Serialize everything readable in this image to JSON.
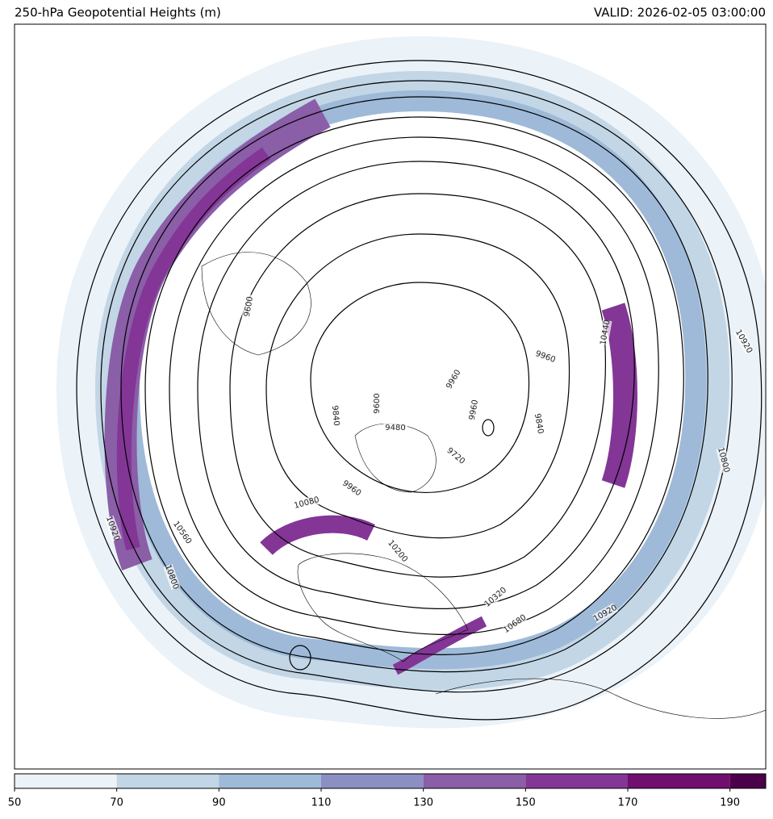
{
  "header": {
    "title": "250-hPa Geopotential Heights (m)",
    "valid": "VALID: 2026-02-05 03:00:00"
  },
  "colorbar": {
    "ticks": [
      50,
      70,
      90,
      110,
      130,
      150,
      170,
      190
    ],
    "lim": [
      50,
      197
    ],
    "colors": [
      "#ebf2f8",
      "#c2d6e6",
      "#9ebad8",
      "#8c8fc2",
      "#8b5ea8",
      "#833696",
      "#700f6e",
      "#4c0049"
    ]
  },
  "contour_labels": [
    10920,
    10800,
    10440,
    9960,
    9960,
    9960,
    9840,
    9840,
    9600,
    9480,
    9960,
    10080,
    10200,
    10320,
    10680,
    10920,
    10920,
    10560,
    10800,
    9600,
    9720
  ]
}
